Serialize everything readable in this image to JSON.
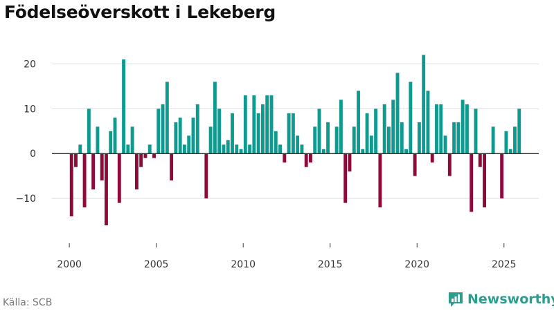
{
  "page": {
    "title": "Födelseöverskott i Lekeberg",
    "source": "Källa: SCB",
    "brand": "Newsworthy"
  },
  "colors": {
    "positive": "#0f9a8f",
    "negative": "#8e0a3b",
    "brand": "#2a9d8f"
  },
  "chart_data": {
    "type": "bar",
    "title": "Födelseöverskott i Lekeberg",
    "xlabel": "",
    "ylabel": "",
    "grid": true,
    "xlim": [
      1999.0,
      2027.0
    ],
    "ylim": [
      -20,
      25
    ],
    "yticks": [
      -10,
      0,
      10,
      20
    ],
    "yticklabels": [
      "−10",
      "0",
      "10",
      "20"
    ],
    "xticks": [
      2000,
      2005,
      2010,
      2015,
      2020,
      2025
    ],
    "xticklabels": [
      "2000",
      "2005",
      "2010",
      "2015",
      "2020",
      "2025"
    ],
    "series": [
      {
        "name": "Födelseöverskott",
        "x": [
          2000.125,
          2000.375,
          2000.625,
          2000.875,
          2001.125,
          2001.375,
          2001.625,
          2001.875,
          2002.125,
          2002.375,
          2002.625,
          2002.875,
          2003.125,
          2003.375,
          2003.625,
          2003.875,
          2004.125,
          2004.375,
          2004.625,
          2004.875,
          2005.125,
          2005.375,
          2005.625,
          2005.875,
          2006.125,
          2006.375,
          2006.625,
          2006.875,
          2007.125,
          2007.375,
          2007.625,
          2007.875,
          2008.125,
          2008.375,
          2008.625,
          2008.875,
          2009.125,
          2009.375,
          2009.625,
          2009.875,
          2010.125,
          2010.375,
          2010.625,
          2010.875,
          2011.125,
          2011.375,
          2011.625,
          2011.875,
          2012.125,
          2012.375,
          2012.625,
          2012.875,
          2013.125,
          2013.375,
          2013.625,
          2013.875,
          2014.125,
          2014.375,
          2014.625,
          2014.875,
          2015.125,
          2015.375,
          2015.625,
          2015.875,
          2016.125,
          2016.375,
          2016.625,
          2016.875,
          2017.125,
          2017.375,
          2017.625,
          2017.875,
          2018.125,
          2018.375,
          2018.625,
          2018.875,
          2019.125,
          2019.375,
          2019.625,
          2019.875,
          2020.125,
          2020.375,
          2020.625,
          2020.875,
          2021.125,
          2021.375,
          2021.625,
          2021.875,
          2022.125,
          2022.375,
          2022.625,
          2022.875,
          2023.125,
          2023.375,
          2023.625,
          2023.875,
          2024.125,
          2024.375,
          2024.625,
          2024.875,
          2025.125,
          2025.375,
          2025.625,
          2025.875
        ],
        "values": [
          -14,
          -3,
          2,
          -12,
          10,
          -8,
          6,
          -6,
          -16,
          5,
          8,
          -11,
          21,
          2,
          6,
          -8,
          -3,
          -1,
          2,
          -1,
          10,
          11,
          16,
          -6,
          7,
          8,
          2,
          4,
          8,
          11,
          0,
          -10,
          6,
          16,
          10,
          2,
          3,
          9,
          2,
          1,
          13,
          2,
          13,
          9,
          11,
          13,
          13,
          5,
          2,
          -2,
          9,
          9,
          4,
          2,
          -3,
          -2,
          6,
          10,
          1,
          7,
          0,
          6,
          12,
          -11,
          -4,
          6,
          14,
          1,
          9,
          4,
          10,
          -12,
          11,
          6,
          12,
          18,
          7,
          1,
          16,
          -5,
          7,
          22,
          14,
          -2,
          11,
          11,
          4,
          -5,
          7,
          7,
          12,
          11,
          -13,
          10,
          -3,
          -12,
          0,
          6,
          0,
          -10,
          5,
          1,
          6,
          10
        ]
      }
    ]
  }
}
